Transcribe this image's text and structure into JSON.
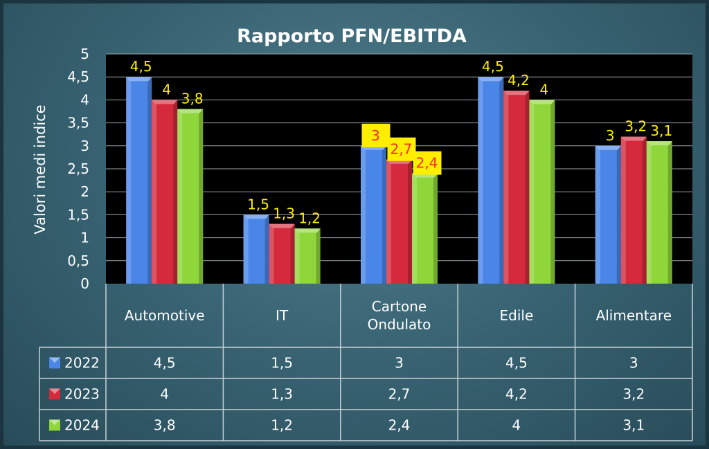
{
  "chart_data": {
    "type": "bar",
    "title": "Rapporto PFN/EBITDA",
    "ylabel": "Valori medi indice",
    "xlabel": "",
    "ylim": [
      0,
      5
    ],
    "yticks": [
      "0",
      "0,5",
      "1",
      "1,5",
      "2",
      "2,5",
      "3",
      "3,5",
      "4",
      "4,5",
      "5"
    ],
    "grid": true,
    "categories": [
      "Automotive",
      "IT",
      "Cartone\nOndulato",
      "Edile",
      "Alimentare"
    ],
    "series": [
      {
        "name": "2022",
        "color": "#4a86e8",
        "values": [
          4.5,
          1.5,
          3,
          4.5,
          3
        ],
        "labels": [
          "4,5",
          "1,5",
          "3",
          "4,5",
          "3"
        ]
      },
      {
        "name": "2023",
        "color": "#d42a3c",
        "values": [
          4,
          1.3,
          2.7,
          4.2,
          3.2
        ],
        "labels": [
          "4",
          "1,3",
          "2,7",
          "4,2",
          "3,2"
        ]
      },
      {
        "name": "2024",
        "color": "#8fd63a",
        "values": [
          3.8,
          1.2,
          2.4,
          4,
          3.1
        ],
        "labels": [
          "3,8",
          "1,2",
          "2,4",
          "4",
          "3,1"
        ]
      }
    ],
    "data_label_color": "#ffee00",
    "highlight_label_color": "#ff2a2a",
    "highlight_category_index": 2,
    "legend": "data-table"
  }
}
